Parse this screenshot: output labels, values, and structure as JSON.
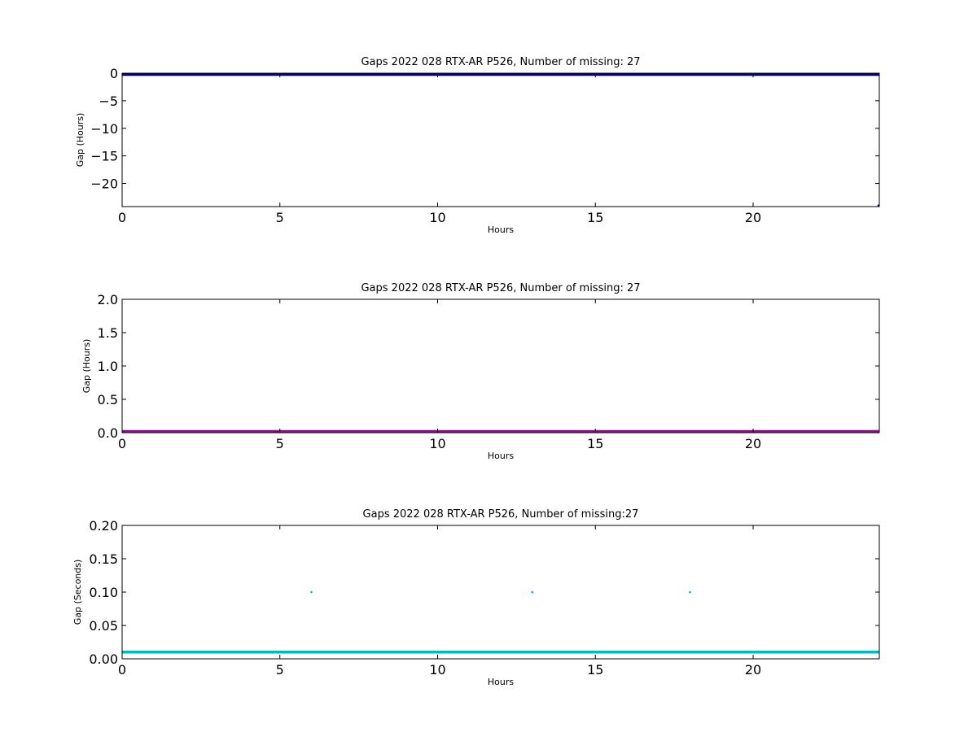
{
  "chart_data": [
    {
      "type": "scatter",
      "title": "Gaps 2022 028 RTX-AR  P526, Number of missing: 27",
      "xlabel": "Hours",
      "ylabel": "Gap (Hours)",
      "xlim": [
        0,
        24
      ],
      "ylim": [
        -24.2,
        0
      ],
      "xticks": [
        "0",
        "5",
        "10",
        "15",
        "20"
      ],
      "xtick_values": [
        0,
        5,
        10,
        15,
        20
      ],
      "yticks": [
        "0",
        "−5",
        "−10",
        "−15",
        "−20"
      ],
      "ytick_values": [
        0,
        -5,
        -10,
        -15,
        -20
      ],
      "series": [
        {
          "color": "#000080",
          "style": "line",
          "x": [
            0,
            24
          ],
          "y": [
            0,
            0
          ]
        },
        {
          "color": "#000080",
          "style": "points",
          "x": [
            24
          ],
          "y": [
            -24
          ]
        }
      ]
    },
    {
      "type": "scatter",
      "title": "Gaps 2022 028 RTX-AR  P526, Number of missing: 27",
      "xlabel": "Hours",
      "ylabel": "Gap (Hours)",
      "xlim": [
        0,
        24
      ],
      "ylim": [
        0,
        2
      ],
      "xticks": [
        "0",
        "5",
        "10",
        "15",
        "20"
      ],
      "xtick_values": [
        0,
        5,
        10,
        15,
        20
      ],
      "yticks": [
        "0.0",
        "0.5",
        "1.0",
        "1.5",
        "2.0"
      ],
      "ytick_values": [
        0,
        0.5,
        1,
        1.5,
        2
      ],
      "series": [
        {
          "color": "#990099",
          "style": "line",
          "x": [
            0,
            24
          ],
          "y": [
            0.01,
            0.01
          ]
        }
      ]
    },
    {
      "type": "scatter",
      "title": "Gaps 2022 028 RTX-AR  P526, Number of missing:27",
      "xlabel": "Hours",
      "ylabel": "Gap (Seconds)",
      "xlim": [
        0,
        24
      ],
      "ylim": [
        0,
        0.2
      ],
      "xticks": [
        "0",
        "5",
        "10",
        "15",
        "20"
      ],
      "xtick_values": [
        0,
        5,
        10,
        15,
        20
      ],
      "yticks": [
        "0.00",
        "0.05",
        "0.10",
        "0.15",
        "0.20"
      ],
      "ytick_values": [
        0,
        0.05,
        0.1,
        0.15,
        0.2
      ],
      "series": [
        {
          "color": "#00bbbb",
          "style": "line",
          "x": [
            0,
            24
          ],
          "y": [
            0.01,
            0.01
          ]
        },
        {
          "color": "#00aadd",
          "style": "points",
          "x": [
            6,
            13,
            18
          ],
          "y": [
            0.1,
            0.1,
            0.1
          ]
        }
      ]
    }
  ]
}
